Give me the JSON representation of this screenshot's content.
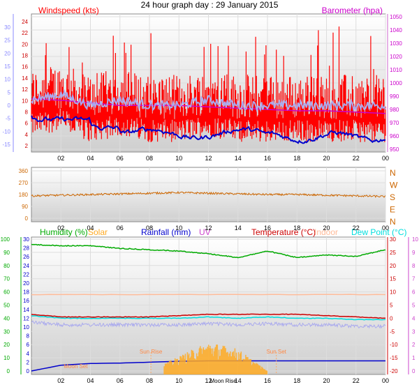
{
  "title": "24 hour graph day : 29 January 2015",
  "x_ticks": [
    "02",
    "04",
    "06",
    "08",
    "10",
    "12",
    "14",
    "16",
    "18",
    "20",
    "22",
    "00"
  ],
  "panel1": {
    "wind_label": "Windspeed (kts)",
    "baro_label": "Barometer (hpa)",
    "outer_left_ticks": [
      "30",
      "25",
      "20",
      "15",
      "10",
      "5",
      "0",
      "-5",
      "-10",
      "-15"
    ],
    "inner_left_ticks": [
      "24",
      "22",
      "20",
      "18",
      "16",
      "14",
      "12",
      "10",
      "8",
      "6",
      "4",
      "2"
    ],
    "right_ticks": [
      "1050",
      "1040",
      "1030",
      "1020",
      "1010",
      "1000",
      "990",
      "980",
      "970",
      "960",
      "950"
    ]
  },
  "panel2": {
    "left_ticks": [
      "360",
      "270",
      "180",
      "90",
      "0"
    ],
    "right_ticks": [
      "N",
      "W",
      "S",
      "E",
      "N"
    ]
  },
  "panel3": {
    "legend": [
      "Humidity (%)",
      "Solar",
      "Rainfall (mm)",
      "UV",
      "Temperature (°C)",
      "Indoor",
      "Dew Point (°C)"
    ],
    "left_outer_ticks": [
      "100",
      "90",
      "80",
      "70",
      "60",
      "50",
      "40",
      "30",
      "20",
      "10",
      "0"
    ],
    "left_inner_ticks": [
      "30",
      "28",
      "26",
      "24",
      "22",
      "20",
      "18",
      "16",
      "14",
      "12",
      "10",
      "8",
      "6",
      "4",
      "2",
      "0"
    ],
    "right_inner_ticks": [
      "30",
      "25",
      "20",
      "15",
      "10",
      "5",
      "0",
      "-5",
      "-10",
      "-15",
      "-20"
    ],
    "right_outer_ticks": [
      "10",
      "9",
      "8",
      "7",
      "6",
      "5",
      "4",
      "3",
      "2",
      "1",
      "0"
    ],
    "annotations": {
      "sun_rise": "Sun Rise",
      "sun_set": "Sun Set",
      "moon_set": "Moon Set",
      "moon_rise": "Moon Rise"
    }
  },
  "colors": {
    "wind": "#ff0000",
    "gust": "#ff0000",
    "baro": "#cc00cc",
    "dir": "#cc6600",
    "humidity": "#00aa00",
    "solar": "#ffaa22",
    "rain": "#0000cc",
    "uv": "#cc44cc",
    "temp": "#cc0000",
    "indoor": "#ffbb99",
    "dew": "#00dddd",
    "blue_line": "#0000cc",
    "lavender": "#aaaaee"
  },
  "chart_data": [
    {
      "type": "line",
      "title": "24 hour graph day : 29 January 2015",
      "x": [
        "00",
        "02",
        "04",
        "06",
        "08",
        "10",
        "12",
        "14",
        "16",
        "18",
        "20",
        "22",
        "00"
      ],
      "series": [
        {
          "name": "Windspeed (kts)",
          "values": [
            13,
            14,
            12,
            13,
            12,
            12,
            13,
            12,
            12,
            12,
            12,
            12,
            12
          ]
        },
        {
          "name": "Barometer (hpa)",
          "values": [
            988,
            987,
            985,
            983,
            983,
            983,
            982,
            981,
            980,
            979,
            979,
            978,
            977
          ]
        }
      ],
      "ylim_wind": [
        0,
        25
      ],
      "ylim_baro": [
        950,
        1050
      ]
    },
    {
      "type": "line",
      "x": [
        "00",
        "02",
        "04",
        "06",
        "08",
        "10",
        "12",
        "14",
        "16",
        "18",
        "20",
        "22",
        "00"
      ],
      "series": [
        {
          "name": "Wind direction",
          "values": [
            170,
            175,
            180,
            185,
            190,
            195,
            190,
            185,
            180,
            180,
            175,
            170,
            165
          ]
        }
      ],
      "ylim": [
        0,
        360
      ]
    },
    {
      "type": "line",
      "x": [
        "00",
        "02",
        "04",
        "06",
        "08",
        "10",
        "12",
        "14",
        "16",
        "18",
        "20",
        "22",
        "00"
      ],
      "series": [
        {
          "name": "Humidity (%)",
          "values": [
            96,
            95,
            95,
            93,
            92,
            91,
            89,
            86,
            91,
            86,
            88,
            87,
            92
          ]
        },
        {
          "name": "Temperature (°C)",
          "values": [
            1.5,
            0.5,
            0.5,
            0.5,
            0.5,
            1,
            1.5,
            1.5,
            1.5,
            1.5,
            1,
            0.5,
            0
          ]
        },
        {
          "name": "Dew Point (°C)",
          "values": [
            1,
            0,
            0,
            0,
            0,
            0,
            0.5,
            0,
            0.5,
            0,
            0,
            -0.5,
            -0.5
          ]
        },
        {
          "name": "Indoor",
          "values": [
            9,
            9,
            9,
            9,
            9,
            9,
            9,
            9,
            9,
            9,
            9,
            9,
            9
          ]
        },
        {
          "name": "Rainfall (mm)",
          "values": [
            0,
            1.3,
            1.7,
            1.8,
            2,
            2.2,
            2.3,
            2.3,
            2.3,
            2.3,
            2.3,
            2.3,
            2.3
          ]
        },
        {
          "name": "Solar",
          "values": [
            0,
            0,
            0,
            0,
            0,
            2,
            4,
            3,
            0,
            0,
            0,
            0,
            0
          ]
        }
      ]
    }
  ]
}
